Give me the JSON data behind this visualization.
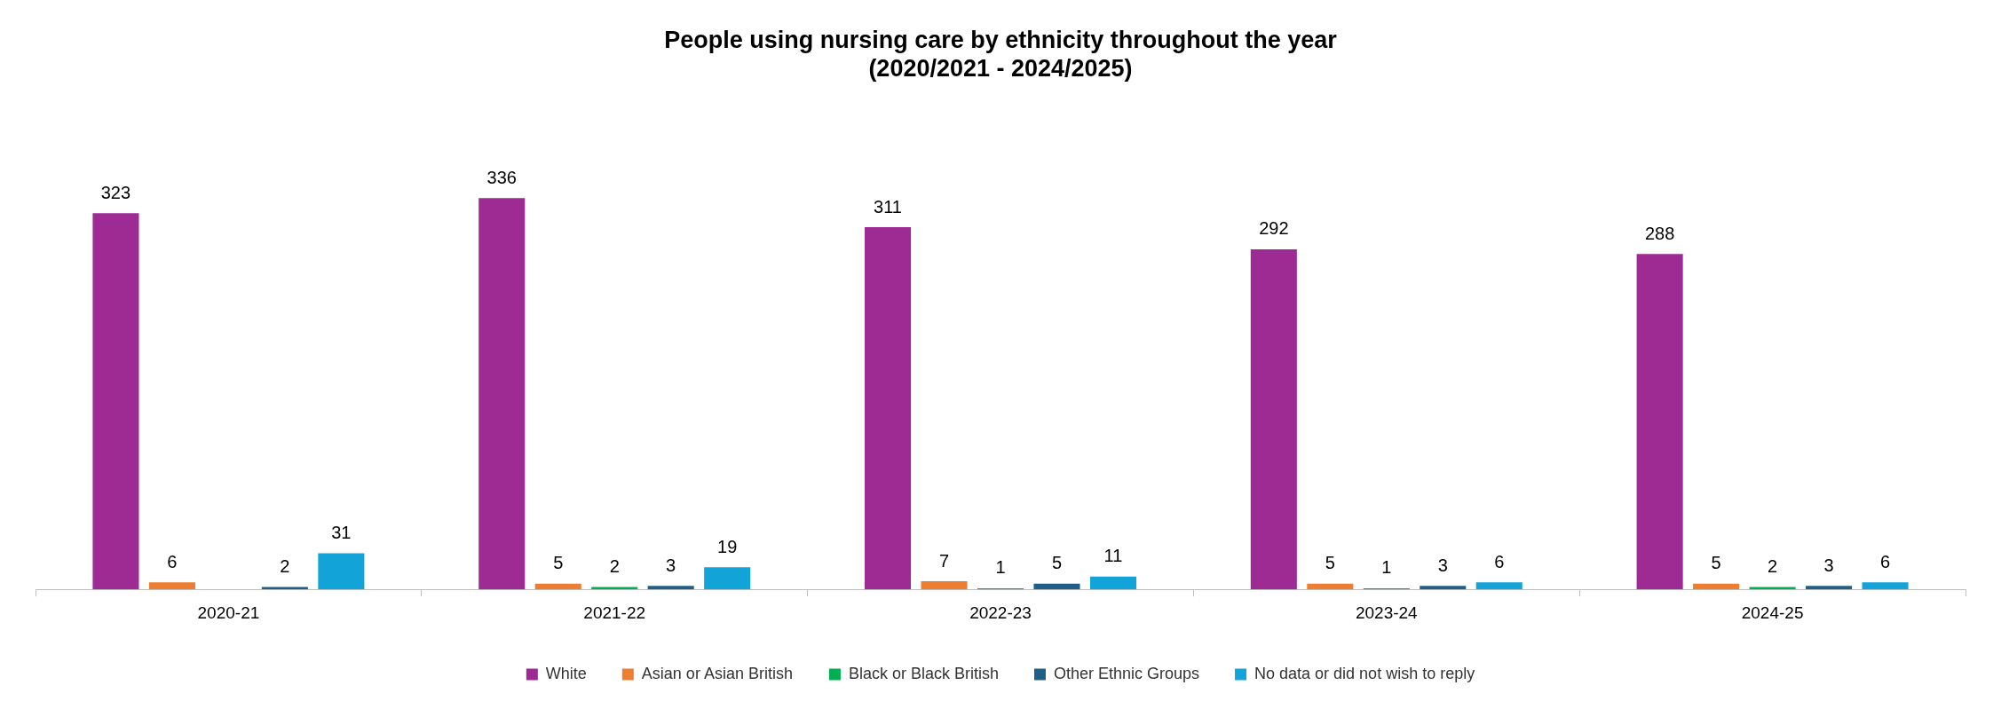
{
  "chart_data": {
    "type": "bar",
    "title": "People using nursing care by ethnicity throughout the year\n(2020/2021 - 2024/2025)",
    "categories": [
      "2020-21",
      "2021-22",
      "2022-23",
      "2023-24",
      "2024-25"
    ],
    "series": [
      {
        "name": "White",
        "color": "#9e2a93",
        "values": [
          323,
          336,
          311,
          292,
          288
        ]
      },
      {
        "name": "Asian or Asian British",
        "color": "#ed7d31",
        "values": [
          6,
          5,
          7,
          5,
          5
        ]
      },
      {
        "name": "Black or Black British",
        "color": "#00b050",
        "values": [
          null,
          2,
          1,
          1,
          2
        ]
      },
      {
        "name": "Other Ethnic Groups",
        "color": "#1f5f87",
        "values": [
          2,
          3,
          5,
          3,
          3
        ]
      },
      {
        "name": "No data or did not wish to reply",
        "color": "#12a3d9",
        "values": [
          31,
          19,
          11,
          6,
          6
        ]
      }
    ],
    "data_labels": true,
    "legend": "bottom",
    "grid": false
  }
}
